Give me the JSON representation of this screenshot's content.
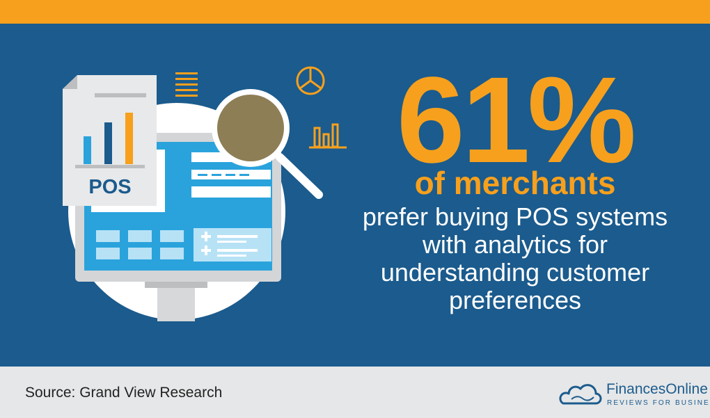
{
  "stat": {
    "value": "61%",
    "subject": "of merchants",
    "description": "prefer buying POS systems with analytics for understanding customer preferences"
  },
  "illustration": {
    "document_label": "POS",
    "icons": [
      "document-icon",
      "monitor-icon",
      "magnifier-icon",
      "menu-lines-icon",
      "pie-chart-icon",
      "bar-chart-icon"
    ]
  },
  "footer": {
    "source": "Source: Grand View Research",
    "brand_name": "FinancesOnline",
    "brand_tagline": "REVIEWS FOR BUSINESS"
  },
  "colors": {
    "background": "#1b5b8d",
    "accent": "#f7a01d",
    "footer": "#e6e7e8",
    "text_white": "#ffffff"
  }
}
